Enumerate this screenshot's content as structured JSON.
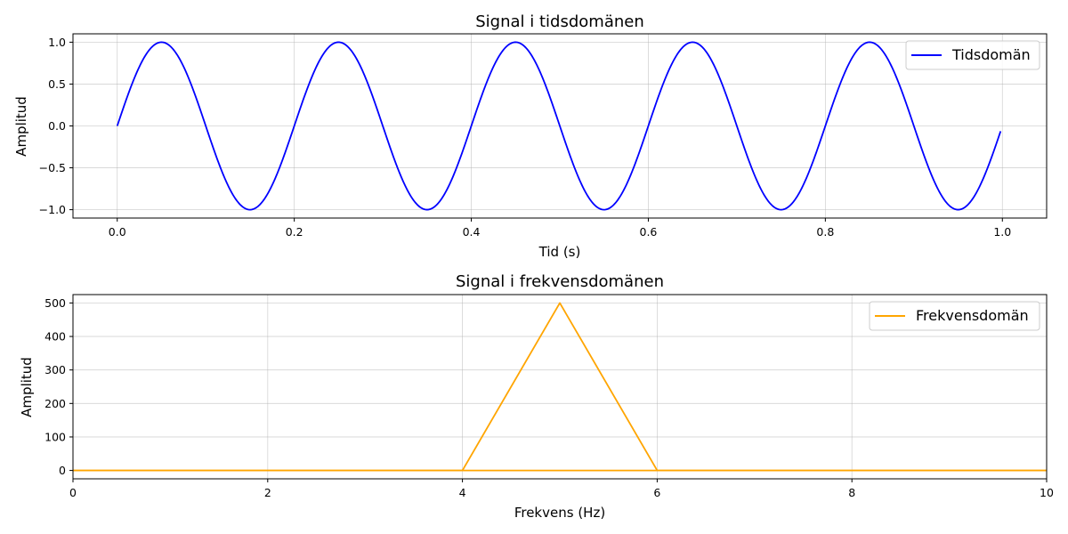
{
  "chart_data": [
    {
      "type": "line",
      "title": "Signal i tidsdomänen",
      "xlabel": "Tid (s)",
      "ylabel": "Amplitud",
      "xlim": [
        -0.05,
        1.05
      ],
      "ylim": [
        -1.1,
        1.1
      ],
      "xticks": [
        0.0,
        0.2,
        0.4,
        0.6,
        0.8,
        1.0
      ],
      "xtick_labels": [
        "0.0",
        "0.2",
        "0.4",
        "0.6",
        "0.8",
        "1.0"
      ],
      "yticks": [
        -1.0,
        -0.5,
        0.0,
        0.5,
        1.0
      ],
      "ytick_labels": [
        "−1.0",
        "−0.5",
        "0.0",
        "0.5",
        "1.0"
      ],
      "grid": true,
      "legend": "upper right",
      "series": [
        {
          "name": "Tidsdomän",
          "color": "#0000ff",
          "x": [
            0.0,
            0.025,
            0.05,
            0.075,
            0.1,
            0.125,
            0.15,
            0.175,
            0.2,
            0.225,
            0.25,
            0.275,
            0.3,
            0.325,
            0.35,
            0.375,
            0.4,
            0.425,
            0.45,
            0.475,
            0.5,
            0.525,
            0.55,
            0.575,
            0.6,
            0.625,
            0.65,
            0.675,
            0.7,
            0.725,
            0.75,
            0.775,
            0.8,
            0.825,
            0.85,
            0.875,
            0.9,
            0.925,
            0.95,
            0.975,
            0.998
          ],
          "y": [
            0.0,
            0.707,
            1.0,
            0.707,
            0.0,
            -0.707,
            -1.0,
            -0.707,
            0.0,
            0.707,
            1.0,
            0.707,
            0.0,
            -0.707,
            -1.0,
            -0.707,
            0.0,
            0.707,
            1.0,
            0.707,
            0.0,
            -0.707,
            -1.0,
            -0.707,
            0.0,
            0.707,
            1.0,
            0.707,
            0.0,
            -0.707,
            -1.0,
            -0.707,
            0.0,
            0.707,
            1.0,
            0.707,
            0.0,
            -0.707,
            -1.0,
            -0.707,
            -0.031
          ]
        }
      ]
    },
    {
      "type": "line",
      "title": "Signal i frekvensdomänen",
      "xlabel": "Frekvens (Hz)",
      "ylabel": "Amplitud",
      "xlim": [
        0,
        10
      ],
      "ylim": [
        -25,
        525
      ],
      "xticks": [
        0,
        2,
        4,
        6,
        8,
        10
      ],
      "xtick_labels": [
        "0",
        "2",
        "4",
        "6",
        "8",
        "10"
      ],
      "yticks": [
        0,
        100,
        200,
        300,
        400,
        500
      ],
      "ytick_labels": [
        "0",
        "100",
        "200",
        "300",
        "400",
        "500"
      ],
      "grid": true,
      "legend": "upper right",
      "series": [
        {
          "name": "Frekvensdomän",
          "color": "#ffa500",
          "x": [
            0,
            4,
            5,
            6,
            10
          ],
          "y": [
            0,
            0,
            500,
            0,
            0
          ]
        },
        {
          "color": "#ffa500",
          "x": [
            0,
            10
          ],
          "y": [
            0,
            0
          ]
        }
      ]
    }
  ]
}
